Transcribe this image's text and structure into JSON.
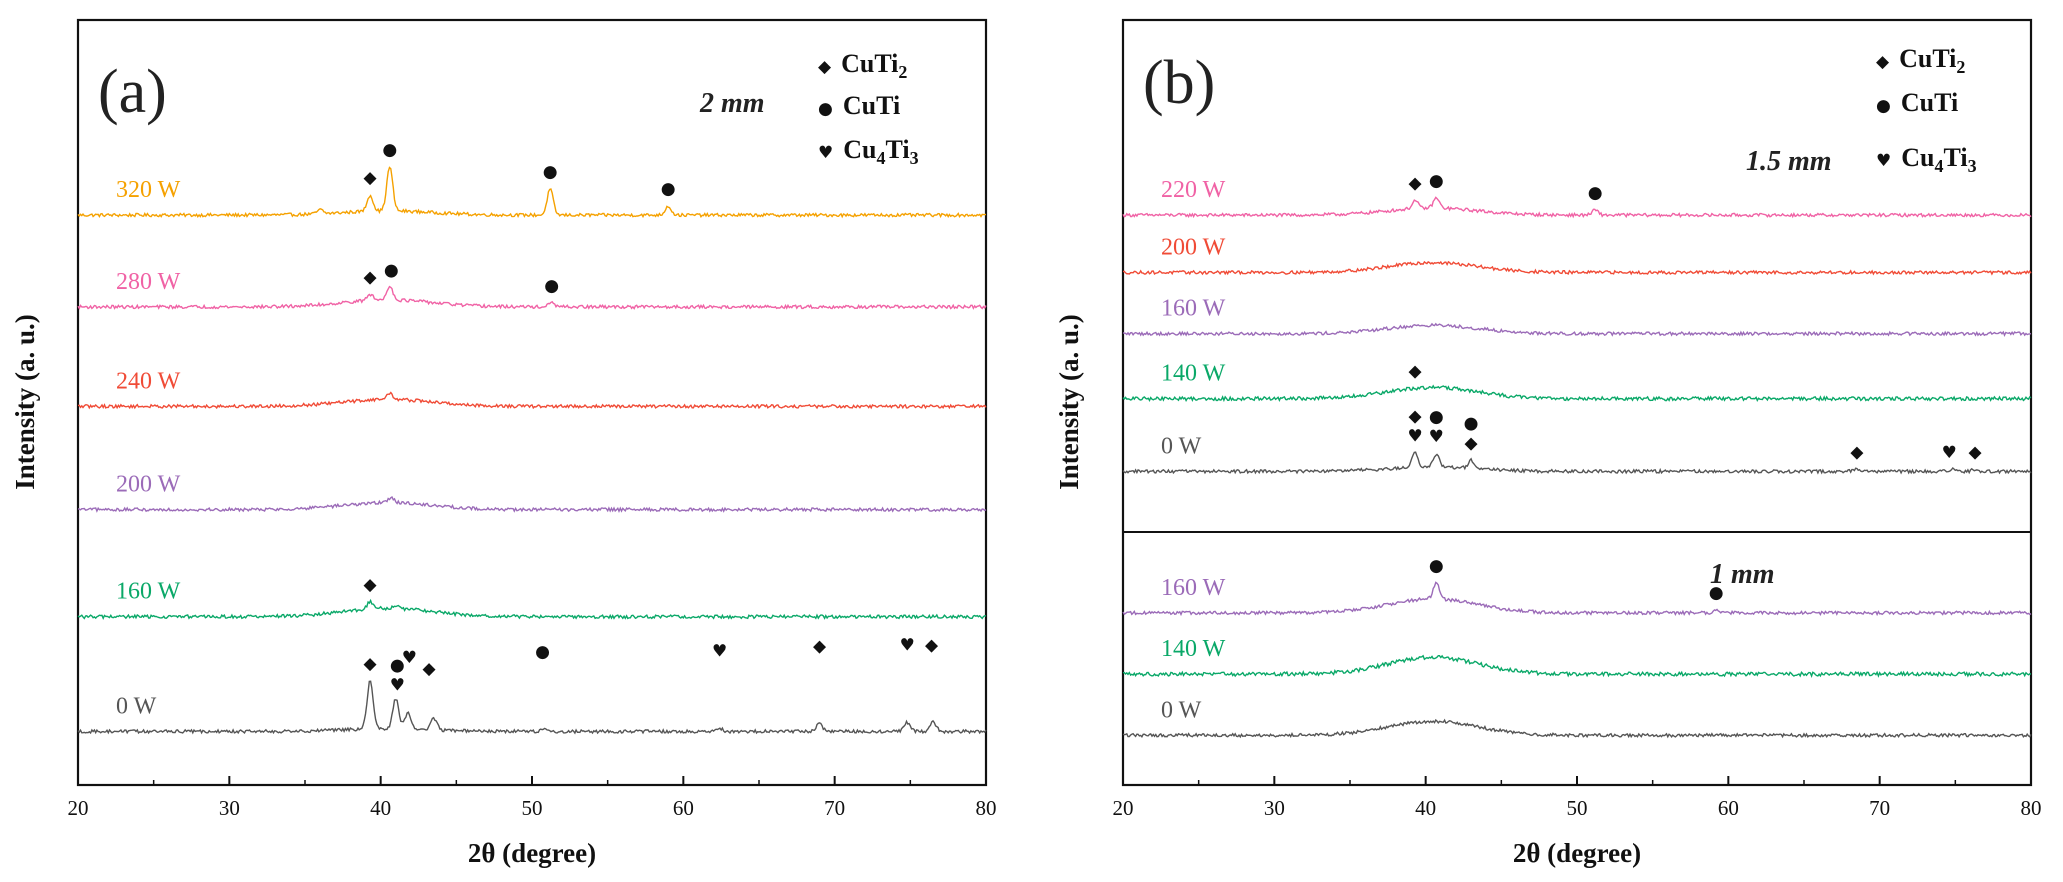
{
  "chart_data": [
    {
      "type": "line",
      "panel_label": "(a)",
      "thickness_label": "2 mm",
      "xlabel": "2θ (degree)",
      "ylabel": "Intensity (a. u.)",
      "xlim": [
        20,
        80
      ],
      "xticks": [
        20,
        30,
        40,
        50,
        60,
        70,
        80
      ],
      "legend": [
        {
          "symbol": "diamond",
          "glyph": "◆",
          "base": "CuTi",
          "sub": "2",
          "rest": ""
        },
        {
          "symbol": "circle",
          "glyph": "●",
          "base": "CuTi",
          "sub": "",
          "rest": ""
        },
        {
          "symbol": "heart",
          "glyph": "♥",
          "base": "Cu",
          "sub": "4",
          "rest": "Ti",
          "sub2": "3"
        }
      ],
      "series": [
        {
          "name": "320 W",
          "color": "#f5a100",
          "baseline_frac": 0.255,
          "hump": 0.3,
          "noise": 1.6,
          "peaks": [
            [
              36.0,
              4
            ],
            [
              39.3,
              16
            ],
            [
              40.6,
              44
            ],
            [
              51.2,
              26
            ],
            [
              59.0,
              9
            ]
          ],
          "markers": [
            {
              "x": 39.3,
              "m": "diamond",
              "above": 1
            },
            {
              "x": 40.6,
              "m": "circle",
              "above": 1
            },
            {
              "x": 51.2,
              "m": "circle",
              "above": 1
            },
            {
              "x": 59.0,
              "m": "circle",
              "above": 1
            }
          ]
        },
        {
          "name": "280 W",
          "color": "#f062a5",
          "baseline_frac": 0.375,
          "hump": 0.5,
          "noise": 1.6,
          "peaks": [
            [
              39.3,
              6
            ],
            [
              40.6,
              14
            ],
            [
              51.3,
              4
            ]
          ],
          "markers": [
            {
              "x": 39.3,
              "m": "diamond",
              "above": 1
            },
            {
              "x": 40.7,
              "m": "circle",
              "above": 1
            },
            {
              "x": 51.3,
              "m": "circle",
              "above": 1
            }
          ]
        },
        {
          "name": "240 W",
          "color": "#f04b36",
          "baseline_frac": 0.505,
          "hump": 0.5,
          "noise": 1.6,
          "peaks": [
            [
              40.6,
              6
            ]
          ],
          "markers": []
        },
        {
          "name": "200 W",
          "color": "#9b6bb8",
          "baseline_frac": 0.64,
          "hump": 0.5,
          "noise": 1.6,
          "peaks": [
            [
              40.7,
              5
            ]
          ],
          "markers": []
        },
        {
          "name": "160 W",
          "color": "#0aa868",
          "baseline_frac": 0.78,
          "hump": 0.6,
          "noise": 1.7,
          "peaks": [
            [
              39.3,
              7
            ],
            [
              41.0,
              3
            ]
          ],
          "markers": [
            {
              "x": 39.3,
              "m": "diamond",
              "above": 1
            }
          ]
        },
        {
          "name": "0 W",
          "color": "#555555",
          "baseline_frac": 0.93,
          "hump": 0.2,
          "noise": 1.6,
          "peaks": [
            [
              39.3,
              48
            ],
            [
              41.0,
              30
            ],
            [
              41.8,
              16
            ],
            [
              43.5,
              12
            ],
            [
              50.8,
              3
            ],
            [
              62.4,
              3
            ],
            [
              69.0,
              8
            ],
            [
              74.8,
              9
            ],
            [
              76.5,
              10
            ]
          ],
          "markers": [
            {
              "x": 39.3,
              "m": "diamond",
              "above": 1
            },
            {
              "x": 41.1,
              "m": "heart",
              "above": 1
            },
            {
              "x": 41.1,
              "m": "circle",
              "above": 2
            },
            {
              "x": 41.9,
              "m": "heart",
              "above": 3
            },
            {
              "x": 43.2,
              "m": "diamond",
              "above": 3
            },
            {
              "x": 50.7,
              "m": "circle",
              "above": 4
            },
            {
              "x": 62.4,
              "m": "heart",
              "above": 4
            },
            {
              "x": 69.0,
              "m": "diamond",
              "above": 4
            },
            {
              "x": 74.8,
              "m": "heart",
              "above": 4
            },
            {
              "x": 76.4,
              "m": "diamond",
              "above": 4
            }
          ]
        }
      ]
    },
    {
      "type": "line",
      "panel_label": "(b)",
      "thickness_label": "1.5 mm",
      "thickness_label_2": "1 mm",
      "xlabel": "2θ (degree)",
      "ylabel": "Intensity (a. u.)",
      "xlim": [
        20,
        80
      ],
      "xticks": [
        20,
        30,
        40,
        50,
        60,
        70,
        80
      ],
      "legend": [
        {
          "symbol": "diamond",
          "glyph": "◆",
          "base": "CuTi",
          "sub": "2",
          "rest": ""
        },
        {
          "symbol": "circle",
          "glyph": "●",
          "base": "CuTi",
          "sub": "",
          "rest": ""
        },
        {
          "symbol": "heart",
          "glyph": "♥",
          "base": "Cu",
          "sub": "4",
          "rest": "Ti",
          "sub2": "3"
        }
      ],
      "series": [
        {
          "name": "220 W",
          "color": "#f062a5",
          "group": "top",
          "baseline_frac": 0.255,
          "hump": 0.5,
          "noise": 1.6,
          "peaks": [
            [
              39.3,
              8
            ],
            [
              40.7,
              10
            ],
            [
              51.2,
              5
            ]
          ],
          "markers": [
            {
              "x": 39.3,
              "m": "diamond",
              "above": 1
            },
            {
              "x": 40.7,
              "m": "circle",
              "above": 1
            },
            {
              "x": 51.2,
              "m": "circle",
              "above": 1
            }
          ]
        },
        {
          "name": "200 W",
          "color": "#f04b36",
          "group": "top",
          "baseline_frac": 0.33,
          "hump": 0.7,
          "noise": 1.6,
          "peaks": [],
          "markers": []
        },
        {
          "name": "160 W",
          "color": "#9b6bb8",
          "group": "top",
          "baseline_frac": 0.41,
          "hump": 0.6,
          "noise": 1.6,
          "peaks": [],
          "markers": []
        },
        {
          "name": "140 W",
          "color": "#0aa868",
          "group": "top",
          "baseline_frac": 0.495,
          "hump": 0.8,
          "noise": 1.8,
          "peaks": [],
          "markers": [
            {
              "x": 39.3,
              "m": "diamond",
              "above": 1
            }
          ]
        },
        {
          "name": "0 W",
          "color": "#555555",
          "group": "top",
          "baseline_frac": 0.59,
          "hump": 0.3,
          "noise": 1.6,
          "peaks": [
            [
              39.3,
              14
            ],
            [
              40.7,
              13
            ],
            [
              43.0,
              8
            ],
            [
              68.5,
              2
            ],
            [
              74.8,
              2
            ],
            [
              76.3,
              2
            ]
          ],
          "markers": [
            {
              "x": 39.3,
              "m": "heart",
              "above": 1
            },
            {
              "x": 39.3,
              "m": "diamond",
              "above": 2
            },
            {
              "x": 40.7,
              "m": "heart",
              "above": 1
            },
            {
              "x": 40.7,
              "m": "circle",
              "above": 2
            },
            {
              "x": 43.0,
              "m": "diamond",
              "above": 1
            },
            {
              "x": 43.0,
              "m": "circle",
              "above": 2
            },
            {
              "x": 68.5,
              "m": "diamond",
              "above": 1
            },
            {
              "x": 74.6,
              "m": "heart",
              "above": 1
            },
            {
              "x": 76.3,
              "m": "diamond",
              "above": 1
            }
          ]
        },
        {
          "name": "160 W",
          "color": "#9b6bb8",
          "group": "bottom",
          "baseline_frac": 0.775,
          "hump": 1.0,
          "noise": 1.6,
          "peaks": [
            [
              40.7,
              16
            ],
            [
              59.2,
              3
            ]
          ],
          "markers": [
            {
              "x": 40.7,
              "m": "circle",
              "above": 1
            },
            {
              "x": 59.2,
              "m": "circle",
              "above": 1
            }
          ]
        },
        {
          "name": "140 W",
          "color": "#0aa868",
          "group": "bottom",
          "baseline_frac": 0.855,
          "hump": 1.2,
          "noise": 1.9,
          "peaks": [],
          "markers": []
        },
        {
          "name": "0 W",
          "color": "#555555",
          "group": "bottom",
          "baseline_frac": 0.935,
          "hump": 1.0,
          "noise": 1.6,
          "peaks": [],
          "markers": []
        }
      ]
    }
  ]
}
